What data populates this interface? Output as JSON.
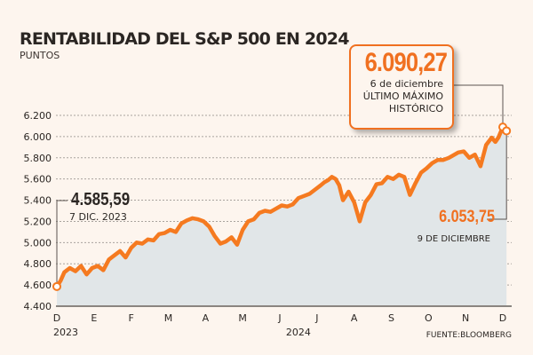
{
  "colors": {
    "line": "#f57a20",
    "area": "#e1e6e8",
    "text": "#2b2623",
    "accent": "#f07020",
    "background": "#fdf5ee"
  },
  "chart_data": {
    "type": "area",
    "title": "RENTABILIDAD DEL S&P 500 EN 2024",
    "subtitle": "PUNTOS",
    "ylabel": "Puntos",
    "xlabel": "",
    "ylim": [
      4400,
      6200
    ],
    "yticks": [
      "6.200",
      "6.000",
      "5.800",
      "5.600",
      "5.400",
      "5.200",
      "5.000",
      "4.800",
      "4.600",
      "4.400"
    ],
    "ytick_values": [
      6200,
      6000,
      5800,
      5600,
      5400,
      5200,
      5000,
      4800,
      4600,
      4400
    ],
    "xticks": [
      "D",
      "E",
      "F",
      "M",
      "A",
      "M",
      "J",
      "J",
      "A",
      "S",
      "O",
      "N",
      "D"
    ],
    "year_labels": [
      {
        "label": "2023",
        "month_index": 0
      },
      {
        "label": "2024",
        "month_index": 6.5
      }
    ],
    "grid": true,
    "series": [
      {
        "name": "S&P 500",
        "x_months": [
          0,
          0.1,
          0.2,
          0.35,
          0.5,
          0.65,
          0.8,
          0.95,
          1.1,
          1.25,
          1.4,
          1.55,
          1.7,
          1.85,
          2.0,
          2.15,
          2.3,
          2.45,
          2.6,
          2.75,
          2.9,
          3.05,
          3.2,
          3.35,
          3.5,
          3.65,
          3.8,
          3.95,
          4.1,
          4.25,
          4.4,
          4.55,
          4.7,
          4.85,
          5.0,
          5.15,
          5.3,
          5.45,
          5.6,
          5.75,
          5.9,
          6.05,
          6.2,
          6.35,
          6.5,
          6.65,
          6.8,
          6.95,
          7.1,
          7.2,
          7.3,
          7.4,
          7.5,
          7.6,
          7.7,
          7.85,
          8.0,
          8.15,
          8.3,
          8.45,
          8.6,
          8.75,
          8.9,
          9.05,
          9.2,
          9.35,
          9.5,
          9.65,
          9.8,
          9.95,
          10.1,
          10.25,
          10.4,
          10.55,
          10.65,
          10.8,
          10.95,
          11.1,
          11.25,
          11.4,
          11.55,
          11.7,
          11.8,
          11.88
        ],
        "values": [
          4585,
          4640,
          4720,
          4760,
          4730,
          4780,
          4700,
          4760,
          4780,
          4740,
          4840,
          4880,
          4920,
          4860,
          4950,
          5000,
          4990,
          5030,
          5020,
          5080,
          5090,
          5120,
          5100,
          5180,
          5210,
          5230,
          5220,
          5200,
          5150,
          5060,
          4990,
          5010,
          5050,
          4980,
          5120,
          5200,
          5220,
          5280,
          5300,
          5290,
          5320,
          5350,
          5340,
          5360,
          5420,
          5440,
          5460,
          5500,
          5540,
          5570,
          5590,
          5620,
          5600,
          5540,
          5400,
          5480,
          5380,
          5200,
          5380,
          5450,
          5550,
          5560,
          5620,
          5600,
          5640,
          5620,
          5450,
          5560,
          5660,
          5700,
          5750,
          5780,
          5780,
          5800,
          5820,
          5850,
          5860,
          5800,
          5830,
          5720,
          5920,
          5990,
          5950,
          5990
        ],
        "start": {
          "label": "4.585,59",
          "date": "7 DIC. 2023",
          "value": 4585.59
        },
        "max": {
          "label": "6.090,27",
          "date": "6 de diciembre",
          "note_line1": "ÚLTIMO MÁXIMO",
          "note_line2": "HISTÓRICO",
          "value": 6090.27,
          "month": 12.0
        },
        "last": {
          "label": "6.053,75",
          "date": "9 DE DICIEMBRE",
          "value": 6053.75,
          "month": 12.1
        }
      }
    ]
  },
  "source": "FUENTE:BLOOMBERG"
}
